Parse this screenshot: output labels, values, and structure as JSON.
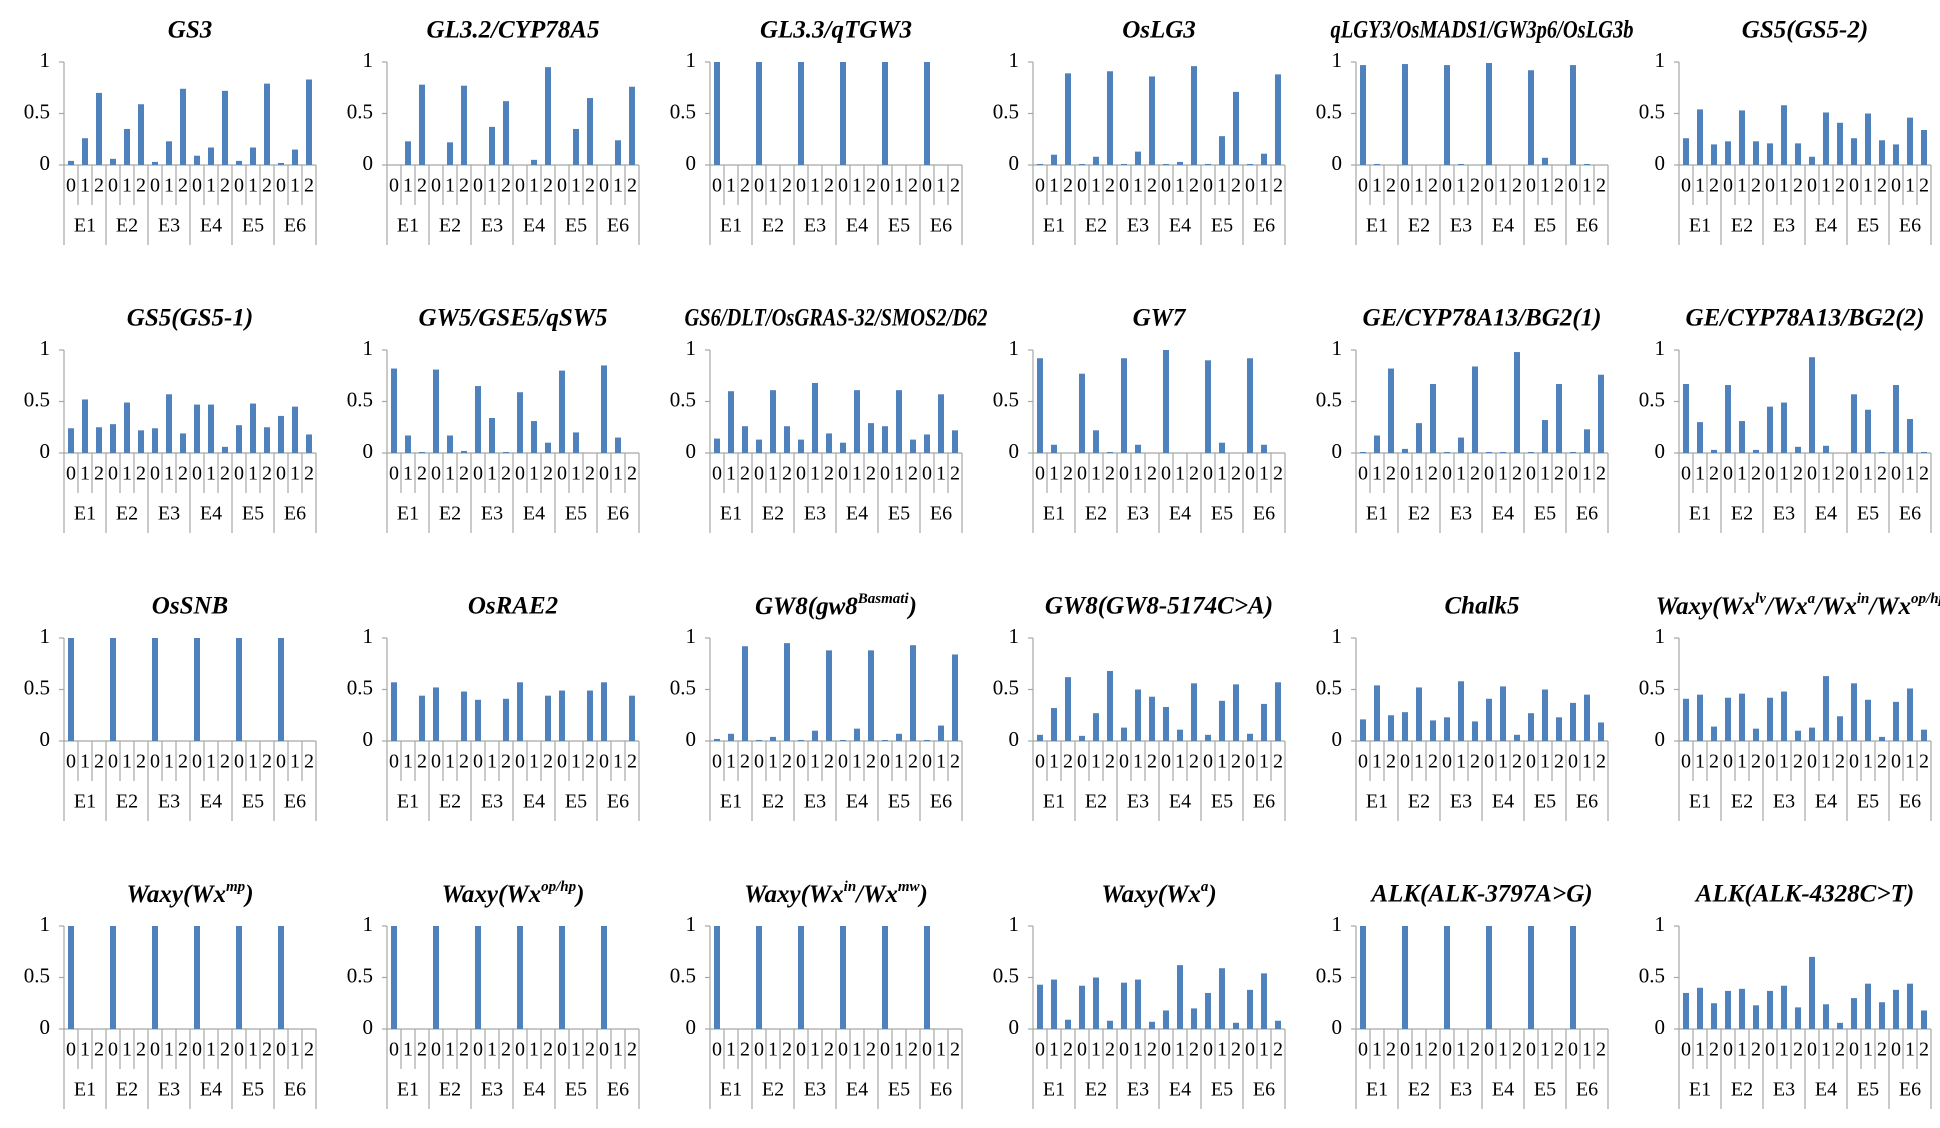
{
  "chart_data": [
    {
      "type": "bar",
      "title": "GS3",
      "categories": [
        "0",
        "1",
        "2"
      ],
      "groups": [
        "E1",
        "E2",
        "E3",
        "E4",
        "E5",
        "E6"
      ],
      "values": [
        [
          0.04,
          0.26,
          0.7
        ],
        [
          0.06,
          0.35,
          0.59
        ],
        [
          0.03,
          0.23,
          0.74
        ],
        [
          0.09,
          0.17,
          0.72
        ],
        [
          0.04,
          0.17,
          0.79
        ],
        [
          0.02,
          0.15,
          0.83
        ]
      ],
      "ylim": [
        0,
        1
      ],
      "yticks": [
        0,
        0.5,
        1
      ],
      "color": "#4f81bd"
    },
    {
      "type": "bar",
      "title": "GL3.2/CYP78A5",
      "categories": [
        "0",
        "1",
        "2"
      ],
      "groups": [
        "E1",
        "E2",
        "E3",
        "E4",
        "E5",
        "E6"
      ],
      "values": [
        [
          0,
          0.23,
          0.78
        ],
        [
          0,
          0.22,
          0.77
        ],
        [
          0,
          0.37,
          0.62
        ],
        [
          0,
          0.05,
          0.95
        ],
        [
          0,
          0.35,
          0.65
        ],
        [
          0,
          0.24,
          0.76
        ]
      ],
      "ylim": [
        0,
        1
      ],
      "yticks": [
        0,
        0.5,
        1
      ],
      "color": "#4f81bd"
    },
    {
      "type": "bar",
      "title": "GL3.3/qTGW3",
      "categories": [
        "0",
        "1",
        "2"
      ],
      "groups": [
        "E1",
        "E2",
        "E3",
        "E4",
        "E5",
        "E6"
      ],
      "values": [
        [
          1,
          0,
          0
        ],
        [
          1,
          0,
          0
        ],
        [
          1,
          0,
          0
        ],
        [
          1,
          0,
          0
        ],
        [
          1,
          0,
          0
        ],
        [
          1,
          0,
          0
        ]
      ],
      "ylim": [
        0,
        1
      ],
      "yticks": [
        0,
        0.5,
        1
      ],
      "color": "#4f81bd"
    },
    {
      "type": "bar",
      "title": "OsLG3",
      "categories": [
        "0",
        "1",
        "2"
      ],
      "groups": [
        "E1",
        "E2",
        "E3",
        "E4",
        "E5",
        "E6"
      ],
      "values": [
        [
          0.01,
          0.1,
          0.89
        ],
        [
          0.01,
          0.08,
          0.91
        ],
        [
          0.01,
          0.13,
          0.86
        ],
        [
          0.01,
          0.03,
          0.96
        ],
        [
          0.01,
          0.28,
          0.71
        ],
        [
          0.01,
          0.11,
          0.88
        ]
      ],
      "ylim": [
        0,
        1
      ],
      "yticks": [
        0,
        0.5,
        1
      ],
      "color": "#4f81bd"
    },
    {
      "type": "bar",
      "title": "qLGY3/OsMADS1/GW3p6/OsLG3b",
      "categories": [
        "0",
        "1",
        "2"
      ],
      "groups": [
        "E1",
        "E2",
        "E3",
        "E4",
        "E5",
        "E6"
      ],
      "values": [
        [
          0.97,
          0.01,
          0
        ],
        [
          0.98,
          0,
          0
        ],
        [
          0.97,
          0.01,
          0
        ],
        [
          0.99,
          0,
          0
        ],
        [
          0.92,
          0.07,
          0
        ],
        [
          0.97,
          0.01,
          0
        ]
      ],
      "ylim": [
        0,
        1
      ],
      "yticks": [
        0,
        0.5,
        1
      ],
      "color": "#4f81bd"
    },
    {
      "type": "bar",
      "title": "GS5(GS5-2)",
      "categories": [
        "0",
        "1",
        "2"
      ],
      "groups": [
        "E1",
        "E2",
        "E3",
        "E4",
        "E5",
        "E6"
      ],
      "values": [
        [
          0.26,
          0.54,
          0.2
        ],
        [
          0.23,
          0.53,
          0.23
        ],
        [
          0.21,
          0.58,
          0.21
        ],
        [
          0.08,
          0.51,
          0.41
        ],
        [
          0.26,
          0.5,
          0.24
        ],
        [
          0.2,
          0.46,
          0.34
        ]
      ],
      "ylim": [
        0,
        1
      ],
      "yticks": [
        0,
        0.5,
        1
      ],
      "color": "#4f81bd"
    },
    {
      "type": "bar",
      "title": "GS5(GS5-1)",
      "categories": [
        "0",
        "1",
        "2"
      ],
      "groups": [
        "E1",
        "E2",
        "E3",
        "E4",
        "E5",
        "E6"
      ],
      "values": [
        [
          0.24,
          0.52,
          0.25
        ],
        [
          0.28,
          0.49,
          0.22
        ],
        [
          0.24,
          0.57,
          0.19
        ],
        [
          0.47,
          0.47,
          0.06
        ],
        [
          0.27,
          0.48,
          0.25
        ],
        [
          0.36,
          0.45,
          0.18
        ]
      ],
      "ylim": [
        0,
        1
      ],
      "yticks": [
        0,
        0.5,
        1
      ],
      "color": "#4f81bd"
    },
    {
      "type": "bar",
      "title": "GW5/GSE5/qSW5",
      "categories": [
        "0",
        "1",
        "2"
      ],
      "groups": [
        "E1",
        "E2",
        "E3",
        "E4",
        "E5",
        "E6"
      ],
      "values": [
        [
          0.82,
          0.17,
          0.01
        ],
        [
          0.81,
          0.17,
          0.02
        ],
        [
          0.65,
          0.34,
          0.01
        ],
        [
          0.59,
          0.31,
          0.1
        ],
        [
          0.8,
          0.2,
          0
        ],
        [
          0.85,
          0.15,
          0
        ]
      ],
      "ylim": [
        0,
        1
      ],
      "yticks": [
        0,
        0.5,
        1
      ],
      "color": "#4f81bd"
    },
    {
      "type": "bar",
      "title": "GS6/DLT/OsGRAS-32/SMOS2/D62",
      "categories": [
        "0",
        "1",
        "2"
      ],
      "groups": [
        "E1",
        "E2",
        "E3",
        "E4",
        "E5",
        "E6"
      ],
      "values": [
        [
          0.14,
          0.6,
          0.26
        ],
        [
          0.13,
          0.61,
          0.26
        ],
        [
          0.13,
          0.68,
          0.19
        ],
        [
          0.1,
          0.61,
          0.29
        ],
        [
          0.26,
          0.61,
          0.13
        ],
        [
          0.18,
          0.57,
          0.22
        ]
      ],
      "ylim": [
        0,
        1
      ],
      "yticks": [
        0,
        0.5,
        1
      ],
      "color": "#4f81bd"
    },
    {
      "type": "bar",
      "title": "GW7",
      "categories": [
        "0",
        "1",
        "2"
      ],
      "groups": [
        "E1",
        "E2",
        "E3",
        "E4",
        "E5",
        "E6"
      ],
      "values": [
        [
          0.92,
          0.08,
          0
        ],
        [
          0.77,
          0.22,
          0.01
        ],
        [
          0.92,
          0.08,
          0
        ],
        [
          1,
          0,
          0
        ],
        [
          0.9,
          0.1,
          0
        ],
        [
          0.92,
          0.08,
          0
        ]
      ],
      "ylim": [
        0,
        1
      ],
      "yticks": [
        0,
        0.5,
        1
      ],
      "color": "#4f81bd"
    },
    {
      "type": "bar",
      "title": "GE/CYP78A13/BG2(1)",
      "categories": [
        "0",
        "1",
        "2"
      ],
      "groups": [
        "E1",
        "E2",
        "E3",
        "E4",
        "E5",
        "E6"
      ],
      "values": [
        [
          0.01,
          0.17,
          0.82
        ],
        [
          0.04,
          0.29,
          0.67
        ],
        [
          0.01,
          0.15,
          0.84
        ],
        [
          0.01,
          0.01,
          0.98
        ],
        [
          0.01,
          0.32,
          0.67
        ],
        [
          0.01,
          0.23,
          0.76
        ]
      ],
      "ylim": [
        0,
        1
      ],
      "yticks": [
        0,
        0.5,
        1
      ],
      "color": "#4f81bd"
    },
    {
      "type": "bar",
      "title": "GE/CYP78A13/BG2(2)",
      "categories": [
        "0",
        "1",
        "2"
      ],
      "groups": [
        "E1",
        "E2",
        "E3",
        "E4",
        "E5",
        "E6"
      ],
      "values": [
        [
          0.67,
          0.3,
          0.03
        ],
        [
          0.66,
          0.31,
          0.03
        ],
        [
          0.45,
          0.49,
          0.06
        ],
        [
          0.93,
          0.07,
          0
        ],
        [
          0.57,
          0.42,
          0.01
        ],
        [
          0.66,
          0.33,
          0.01
        ]
      ],
      "ylim": [
        0,
        1
      ],
      "yticks": [
        0,
        0.5,
        1
      ],
      "color": "#4f81bd"
    },
    {
      "type": "bar",
      "title": "OsSNB",
      "categories": [
        "0",
        "1",
        "2"
      ],
      "groups": [
        "E1",
        "E2",
        "E3",
        "E4",
        "E5",
        "E6"
      ],
      "values": [
        [
          1,
          0,
          0
        ],
        [
          1,
          0,
          0
        ],
        [
          1,
          0,
          0
        ],
        [
          1,
          0,
          0
        ],
        [
          1,
          0,
          0
        ],
        [
          1,
          0,
          0
        ]
      ],
      "ylim": [
        0,
        1
      ],
      "yticks": [
        0,
        0.5,
        1
      ],
      "color": "#4f81bd"
    },
    {
      "type": "bar",
      "title": "OsRAE2",
      "categories": [
        "0",
        "1",
        "2"
      ],
      "groups": [
        "E1",
        "E2",
        "E3",
        "E4",
        "E5",
        "E6"
      ],
      "values": [
        [
          0.57,
          0,
          0.44
        ],
        [
          0.52,
          0,
          0.48
        ],
        [
          0.4,
          0,
          0.41
        ],
        [
          0.57,
          0,
          0.44
        ],
        [
          0.49,
          0,
          0.49
        ],
        [
          0.57,
          0,
          0.44
        ]
      ],
      "ylim": [
        0,
        1
      ],
      "yticks": [
        0,
        0.5,
        1
      ],
      "color": "#4f81bd"
    },
    {
      "type": "bar",
      "title": [
        "GW8(gw8",
        {
          "text": "Basmati",
          "sup": true
        },
        ")"
      ],
      "categories": [
        "0",
        "1",
        "2"
      ],
      "groups": [
        "E1",
        "E2",
        "E3",
        "E4",
        "E5",
        "E6"
      ],
      "values": [
        [
          0.02,
          0.07,
          0.92
        ],
        [
          0.01,
          0.04,
          0.95
        ],
        [
          0.01,
          0.1,
          0.88
        ],
        [
          0.01,
          0.12,
          0.88
        ],
        [
          0.01,
          0.07,
          0.93
        ],
        [
          0.01,
          0.15,
          0.84
        ]
      ],
      "ylim": [
        0,
        1
      ],
      "yticks": [
        0,
        0.5,
        1
      ],
      "color": "#4f81bd"
    },
    {
      "type": "bar",
      "title": "GW8(GW8-5174C>A)",
      "categories": [
        "0",
        "1",
        "2"
      ],
      "groups": [
        "E1",
        "E2",
        "E3",
        "E4",
        "E5",
        "E6"
      ],
      "values": [
        [
          0.06,
          0.32,
          0.62
        ],
        [
          0.05,
          0.27,
          0.68
        ],
        [
          0.13,
          0.5,
          0.43
        ],
        [
          0.33,
          0.11,
          0.56
        ],
        [
          0.06,
          0.39,
          0.55
        ],
        [
          0.07,
          0.36,
          0.57
        ]
      ],
      "ylim": [
        0,
        1
      ],
      "yticks": [
        0,
        0.5,
        1
      ],
      "color": "#4f81bd"
    },
    {
      "type": "bar",
      "title": "Chalk5",
      "categories": [
        "0",
        "1",
        "2"
      ],
      "groups": [
        "E1",
        "E2",
        "E3",
        "E4",
        "E5",
        "E6"
      ],
      "values": [
        [
          0.21,
          0.54,
          0.25
        ],
        [
          0.28,
          0.52,
          0.2
        ],
        [
          0.23,
          0.58,
          0.19
        ],
        [
          0.41,
          0.53,
          0.06
        ],
        [
          0.27,
          0.5,
          0.23
        ],
        [
          0.37,
          0.45,
          0.18
        ]
      ],
      "ylim": [
        0,
        1
      ],
      "yticks": [
        0,
        0.5,
        1
      ],
      "color": "#4f81bd"
    },
    {
      "type": "bar",
      "title": [
        "Waxy(Wx",
        {
          "text": "lv",
          "sup": true
        },
        "/Wx",
        {
          "text": "a",
          "sup": true
        },
        "/Wx",
        {
          "text": "in",
          "sup": true
        },
        "/Wx",
        {
          "text": "op/hp",
          "sup": true
        },
        ")"
      ],
      "categories": [
        "0",
        "1",
        "2"
      ],
      "groups": [
        "E1",
        "E2",
        "E3",
        "E4",
        "E5",
        "E6"
      ],
      "values": [
        [
          0.41,
          0.45,
          0.14
        ],
        [
          0.42,
          0.46,
          0.12
        ],
        [
          0.42,
          0.48,
          0.1
        ],
        [
          0.13,
          0.63,
          0.24
        ],
        [
          0.56,
          0.4,
          0.04
        ],
        [
          0.38,
          0.51,
          0.11
        ]
      ],
      "ylim": [
        0,
        1
      ],
      "yticks": [
        0,
        0.5,
        1
      ],
      "color": "#4f81bd"
    },
    {
      "type": "bar",
      "title": [
        "Waxy(Wx",
        {
          "text": "mp",
          "sup": true
        },
        ")"
      ],
      "categories": [
        "0",
        "1",
        "2"
      ],
      "groups": [
        "E1",
        "E2",
        "E3",
        "E4",
        "E5",
        "E6"
      ],
      "values": [
        [
          1,
          0,
          0
        ],
        [
          1,
          0,
          0
        ],
        [
          1,
          0,
          0
        ],
        [
          1,
          0,
          0
        ],
        [
          1,
          0,
          0
        ],
        [
          1,
          0,
          0
        ]
      ],
      "ylim": [
        0,
        1
      ],
      "yticks": [
        0,
        0.5,
        1
      ],
      "color": "#4f81bd"
    },
    {
      "type": "bar",
      "title": [
        "Waxy(Wx",
        {
          "text": "op/hp",
          "sup": true
        },
        ")"
      ],
      "categories": [
        "0",
        "1",
        "2"
      ],
      "groups": [
        "E1",
        "E2",
        "E3",
        "E4",
        "E5",
        "E6"
      ],
      "values": [
        [
          1,
          0,
          0
        ],
        [
          1,
          0,
          0
        ],
        [
          1,
          0,
          0
        ],
        [
          1,
          0,
          0
        ],
        [
          1,
          0,
          0
        ],
        [
          1,
          0,
          0
        ]
      ],
      "ylim": [
        0,
        1
      ],
      "yticks": [
        0,
        0.5,
        1
      ],
      "color": "#4f81bd"
    },
    {
      "type": "bar",
      "title": [
        "Waxy(Wx",
        {
          "text": "in",
          "sup": true
        },
        "/Wx",
        {
          "text": "mw",
          "sup": true
        },
        ")"
      ],
      "categories": [
        "0",
        "1",
        "2"
      ],
      "groups": [
        "E1",
        "E2",
        "E3",
        "E4",
        "E5",
        "E6"
      ],
      "values": [
        [
          1,
          0,
          0
        ],
        [
          1,
          0,
          0
        ],
        [
          1,
          0,
          0
        ],
        [
          1,
          0,
          0
        ],
        [
          1,
          0,
          0
        ],
        [
          1,
          0,
          0
        ]
      ],
      "ylim": [
        0,
        1
      ],
      "yticks": [
        0,
        0.5,
        1
      ],
      "color": "#4f81bd"
    },
    {
      "type": "bar",
      "title": [
        "Waxy(Wx",
        {
          "text": "a",
          "sup": true
        },
        ")"
      ],
      "categories": [
        "0",
        "1",
        "2"
      ],
      "groups": [
        "E1",
        "E2",
        "E3",
        "E4",
        "E5",
        "E6"
      ],
      "values": [
        [
          0.43,
          0.48,
          0.09
        ],
        [
          0.42,
          0.5,
          0.08
        ],
        [
          0.45,
          0.48,
          0.07
        ],
        [
          0.18,
          0.62,
          0.2
        ],
        [
          0.35,
          0.59,
          0.06
        ],
        [
          0.38,
          0.54,
          0.08
        ]
      ],
      "ylim": [
        0,
        1
      ],
      "yticks": [
        0,
        0.5,
        1
      ],
      "color": "#4f81bd"
    },
    {
      "type": "bar",
      "title": "ALK(ALK-3797A>G)",
      "categories": [
        "0",
        "1",
        "2"
      ],
      "groups": [
        "E1",
        "E2",
        "E3",
        "E4",
        "E5",
        "E6"
      ],
      "values": [
        [
          1,
          0,
          0
        ],
        [
          1,
          0,
          0
        ],
        [
          1,
          0,
          0
        ],
        [
          1,
          0,
          0
        ],
        [
          1,
          0,
          0
        ],
        [
          1,
          0,
          0
        ]
      ],
      "ylim": [
        0,
        1
      ],
      "yticks": [
        0,
        0.5,
        1
      ],
      "color": "#4f81bd"
    },
    {
      "type": "bar",
      "title": "ALK(ALK-4328C>T)",
      "categories": [
        "0",
        "1",
        "2"
      ],
      "groups": [
        "E1",
        "E2",
        "E3",
        "E4",
        "E5",
        "E6"
      ],
      "values": [
        [
          0.35,
          0.4,
          0.25
        ],
        [
          0.37,
          0.39,
          0.23
        ],
        [
          0.37,
          0.42,
          0.21
        ],
        [
          0.7,
          0.24,
          0.06
        ],
        [
          0.3,
          0.44,
          0.26
        ],
        [
          0.38,
          0.44,
          0.18
        ]
      ],
      "ylim": [
        0,
        1
      ],
      "yticks": [
        0,
        0.5,
        1
      ],
      "color": "#4f81bd"
    }
  ]
}
